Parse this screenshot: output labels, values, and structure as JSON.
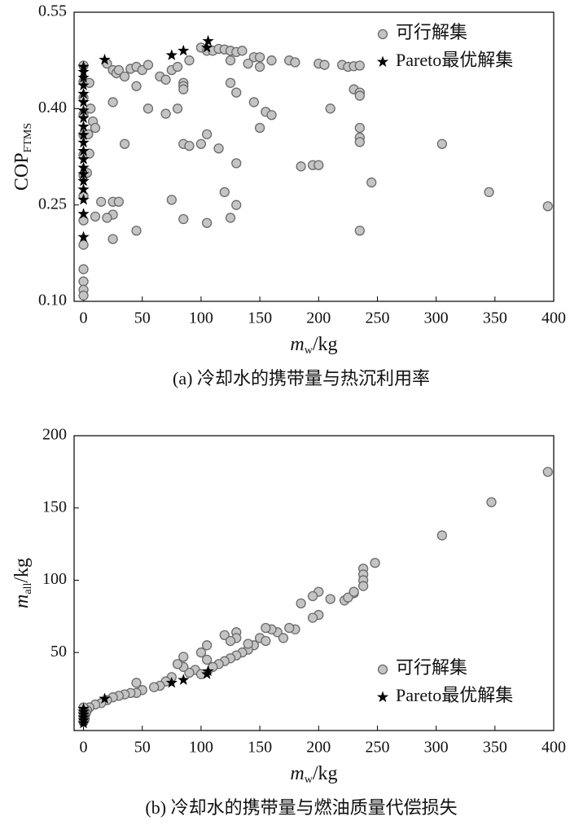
{
  "chart_data": [
    {
      "type": "scatter",
      "caption": "(a) 冷却水的携带量与热沉利用率",
      "xlabel": {
        "text": "m",
        "sub": "w",
        "suffix": "/kg",
        "italic": true
      },
      "ylabel": {
        "text": "COP",
        "sub": "FTMS",
        "italic": false
      },
      "xlim": [
        -8,
        400
      ],
      "xticks": [
        0,
        50,
        100,
        150,
        200,
        250,
        300,
        350,
        400
      ],
      "ylim": [
        0.1,
        0.55
      ],
      "yticks": [
        {
          "value": 0.1,
          "label": "0.10"
        },
        0.25,
        {
          "value": 0.4,
          "label": "0.40"
        },
        0.55
      ],
      "legend": "upper right",
      "series": [
        {
          "name": "可行解集",
          "marker": "circle",
          "color": "#c4c4c4",
          "x": [
            0,
            0,
            0,
            0,
            0,
            0,
            0,
            0,
            0,
            0,
            0,
            0,
            0,
            0,
            5,
            6,
            4,
            8,
            5,
            3,
            20,
            25,
            28,
            30,
            35,
            40,
            45,
            50,
            55,
            65,
            70,
            75,
            80,
            85,
            85,
            85,
            90,
            100,
            105,
            110,
            115,
            120,
            125,
            130,
            135,
            145,
            150,
            160,
            175,
            180,
            125,
            140,
            150,
            200,
            205,
            220,
            225,
            230,
            235,
            230,
            235,
            235,
            125,
            130,
            145,
            155,
            160,
            150,
            210,
            235,
            235,
            235,
            305,
            45,
            25,
            55,
            70,
            80,
            10,
            35,
            85,
            90,
            100,
            105,
            115,
            130,
            185,
            195,
            200,
            245,
            345,
            395,
            15,
            25,
            30,
            75,
            120,
            130,
            25,
            20,
            10,
            85,
            105,
            125,
            235,
            45,
            25
          ],
          "values": [
            0.467,
            0.442,
            0.417,
            0.391,
            0.359,
            0.328,
            0.296,
            0.264,
            0.226,
            0.188,
            0.15,
            0.131,
            0.118,
            0.109,
            0.44,
            0.4,
            0.36,
            0.38,
            0.33,
            0.3,
            0.47,
            0.46,
            0.455,
            0.46,
            0.45,
            0.462,
            0.465,
            0.46,
            0.468,
            0.45,
            0.445,
            0.46,
            0.465,
            0.44,
            0.435,
            0.43,
            0.475,
            0.495,
            0.49,
            0.49,
            0.493,
            0.492,
            0.49,
            0.488,
            0.49,
            0.48,
            0.48,
            0.475,
            0.475,
            0.472,
            0.475,
            0.47,
            0.465,
            0.47,
            0.468,
            0.468,
            0.465,
            0.466,
            0.467,
            0.43,
            0.425,
            0.42,
            0.44,
            0.425,
            0.41,
            0.395,
            0.39,
            0.37,
            0.4,
            0.37,
            0.355,
            0.348,
            0.345,
            0.435,
            0.41,
            0.4,
            0.392,
            0.4,
            0.37,
            0.345,
            0.345,
            0.342,
            0.345,
            0.36,
            0.338,
            0.315,
            0.31,
            0.312,
            0.312,
            0.285,
            0.27,
            0.248,
            0.255,
            0.255,
            0.255,
            0.258,
            0.27,
            0.25,
            0.235,
            0.23,
            0.232,
            0.228,
            0.222,
            0.23,
            0.21,
            0.21,
            0.197
          ]
        },
        {
          "name": "Pareto最优解集",
          "marker": "star",
          "color": "#000000",
          "x": [
            0,
            0,
            0,
            0,
            0,
            0,
            0,
            0,
            0,
            0,
            0,
            0,
            0,
            0,
            0,
            0,
            0,
            0,
            0,
            0,
            18,
            75,
            85,
            105,
            106
          ],
          "values": [
            0.2,
            0.236,
            0.258,
            0.274,
            0.287,
            0.298,
            0.308,
            0.321,
            0.334,
            0.347,
            0.359,
            0.372,
            0.385,
            0.397,
            0.41,
            0.423,
            0.436,
            0.448,
            0.457,
            0.465,
            0.476,
            0.483,
            0.49,
            0.495,
            0.505
          ]
        }
      ]
    },
    {
      "type": "scatter",
      "caption": "(b) 冷却水的携带量与燃油质量代偿损失",
      "xlabel": {
        "text": "m",
        "sub": "w",
        "suffix": "/kg",
        "italic": true
      },
      "ylabel": {
        "text": "m",
        "sub": "all",
        "suffix": "/kg",
        "italic": true
      },
      "xlim": [
        -8,
        400
      ],
      "xticks": [
        0,
        50,
        100,
        150,
        200,
        250,
        300,
        350,
        400
      ],
      "ylim": [
        -4,
        200
      ],
      "yticks": [
        50,
        100,
        150,
        200
      ],
      "legend": "lower right",
      "series": [
        {
          "name": "可行解集",
          "marker": "circle",
          "color": "#c4c4c4",
          "x": [
            395,
            347,
            305,
            248,
            238,
            238,
            238,
            238,
            230,
            222,
            225,
            230,
            210,
            200,
            195,
            200,
            195,
            185,
            180,
            175,
            165,
            160,
            155,
            150,
            145,
            140,
            130,
            130,
            120,
            125,
            135,
            130,
            125,
            120,
            115,
            110,
            105,
            105,
            100,
            95,
            90,
            85,
            85,
            80,
            75,
            70,
            65,
            60,
            50,
            45,
            45,
            40,
            35,
            30,
            25,
            20,
            15,
            10,
            5,
            3,
            2,
            1,
            1,
            0,
            0,
            0,
            0,
            100,
            140,
            155,
            170
          ],
          "values": [
            175,
            154,
            131,
            112,
            108,
            104,
            100,
            96,
            91,
            86,
            88,
            92,
            87,
            92,
            89,
            76,
            74,
            84,
            66,
            67,
            64,
            66,
            67,
            60,
            55,
            52,
            64,
            60,
            62,
            58,
            50,
            48,
            46,
            44,
            42,
            40,
            55,
            45,
            50,
            38,
            36,
            47,
            40,
            42,
            33,
            30,
            27,
            26,
            24,
            29,
            22,
            22,
            21,
            20,
            19,
            17,
            15,
            14,
            12,
            10,
            8,
            6,
            4,
            12,
            9,
            6,
            2,
            35,
            56,
            58,
            60
          ]
        },
        {
          "name": "Pareto最优解集",
          "marker": "star",
          "color": "#000000",
          "x": [
            0,
            0,
            0,
            0,
            0,
            0,
            18,
            75,
            85,
            105,
            106
          ],
          "values": [
            1,
            3,
            5,
            7,
            9,
            11,
            18,
            29,
            31,
            35,
            37
          ]
        }
      ]
    }
  ]
}
